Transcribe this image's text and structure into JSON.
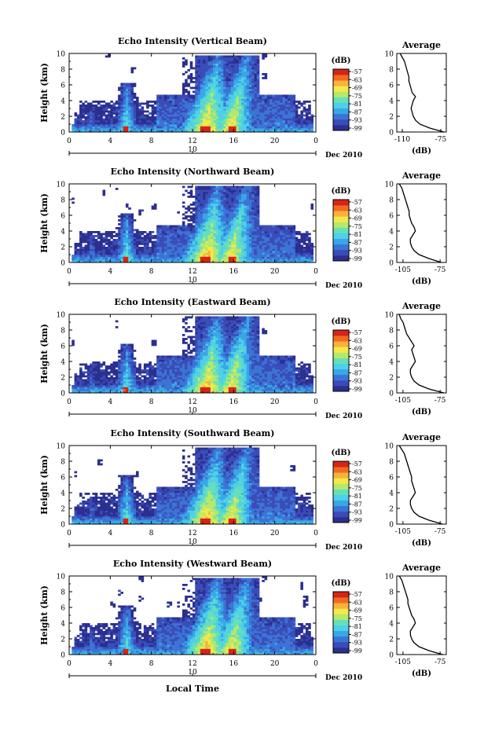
{
  "figure": {
    "xlabel_bottom": "Local Time",
    "date_label": "Dec 2010",
    "date_tick_label": "10",
    "colorbar_unit": "(dB)",
    "colorbar_ticks": [
      "-57",
      "-63",
      "-69",
      "-75",
      "-81",
      "-87",
      "-93",
      "-99"
    ],
    "colormap": [
      "#2b2f8f",
      "#3a4cb8",
      "#3c74d6",
      "#38a7e6",
      "#4fd0e8",
      "#66e0b8",
      "#b8e86a",
      "#f4e84a",
      "#f9b23a",
      "#f26a22",
      "#d62418"
    ],
    "profile_color": "#000000",
    "color_layer_profile": "#000000"
  },
  "chart_data": [
    {
      "type": "heatmap",
      "title": "Echo Intensity (Vertical Beam)",
      "ylabel": "Height (km)",
      "xlabel": "Local Time",
      "x_ticks": [
        "0",
        "4",
        "8",
        "12",
        "16",
        "20",
        "0"
      ],
      "y_ticks": [
        "0",
        "2",
        "4",
        "6",
        "8",
        "10"
      ],
      "xlim": [
        0,
        24
      ],
      "ylim": [
        0,
        10
      ],
      "colorbar": {
        "label": "(dB)",
        "ticks": [
          -57,
          -63,
          -69,
          -75,
          -81,
          -87,
          -93,
          -99
        ]
      },
      "profile": {
        "title": "Average",
        "xlabel": "(dB)",
        "x_ticks": [
          "-110",
          "-75"
        ],
        "xlim": [
          -115,
          -70
        ],
        "y_ticks": [
          "0",
          "2",
          "4",
          "6",
          "8",
          "10"
        ],
        "heights": [
          0,
          0.5,
          1,
          1.5,
          2,
          2.5,
          3,
          3.5,
          4,
          4.5,
          5,
          5.5,
          6,
          6.5,
          7,
          7.5,
          8,
          8.5,
          9,
          9.5,
          10
        ],
        "values": [
          -72,
          -85,
          -94,
          -98,
          -100,
          -101,
          -102,
          -101,
          -100,
          -98,
          -101,
          -102,
          -103,
          -104,
          -104,
          -105,
          -106,
          -107,
          -108,
          -110,
          -112
        ]
      }
    },
    {
      "type": "heatmap",
      "title": "Echo Intensity (Northward Beam)",
      "ylabel": "Height (km)",
      "xlabel": "Local Time",
      "x_ticks": [
        "0",
        "4",
        "8",
        "12",
        "16",
        "20",
        "0"
      ],
      "y_ticks": [
        "0",
        "2",
        "4",
        "6",
        "8",
        "10"
      ],
      "xlim": [
        0,
        24
      ],
      "ylim": [
        0,
        10
      ],
      "colorbar": {
        "label": "(dB)",
        "ticks": [
          -57,
          -63,
          -69,
          -75,
          -81,
          -87,
          -93,
          -99
        ]
      },
      "profile": {
        "title": "Average",
        "xlabel": "(dB)",
        "x_ticks": [
          "-105",
          "-75"
        ],
        "xlim": [
          -110,
          -70
        ],
        "y_ticks": [
          "0",
          "2",
          "4",
          "6",
          "8",
          "10"
        ],
        "heights": [
          0,
          0.5,
          1,
          1.5,
          2,
          2.5,
          3,
          3.5,
          4,
          4.5,
          5,
          5.5,
          6,
          6.5,
          7,
          7.5,
          8,
          8.5,
          9,
          9.5,
          10
        ],
        "values": [
          -74,
          -84,
          -92,
          -96,
          -98,
          -99,
          -99,
          -97,
          -95,
          -96,
          -98,
          -99,
          -100,
          -100,
          -101,
          -102,
          -103,
          -104,
          -105,
          -106,
          -108
        ]
      }
    },
    {
      "type": "heatmap",
      "title": "Echo Intensity (Eastward Beam)",
      "ylabel": "Height (km)",
      "xlabel": "Local Time",
      "x_ticks": [
        "0",
        "4",
        "8",
        "12",
        "16",
        "20",
        "0"
      ],
      "y_ticks": [
        "0",
        "2",
        "4",
        "6",
        "8",
        "10"
      ],
      "xlim": [
        0,
        24
      ],
      "ylim": [
        0,
        10
      ],
      "colorbar": {
        "label": "(dB)",
        "ticks": [
          -57,
          -63,
          -69,
          -75,
          -81,
          -87,
          -93,
          -99
        ]
      },
      "profile": {
        "title": "Average",
        "xlabel": "(dB)",
        "x_ticks": [
          "-105",
          "-75"
        ],
        "xlim": [
          -110,
          -70
        ],
        "y_ticks": [
          "0",
          "2",
          "4",
          "6",
          "8",
          "10"
        ],
        "heights": [
          0,
          0.5,
          1,
          1.5,
          2,
          2.5,
          3,
          3.5,
          4,
          4.5,
          5,
          5.5,
          6,
          6.5,
          7,
          7.5,
          8,
          8.5,
          9,
          9.5,
          10
        ],
        "values": [
          -72,
          -84,
          -92,
          -96,
          -98,
          -99,
          -99,
          -97,
          -95,
          -96,
          -97,
          -98,
          -96,
          -98,
          -100,
          -102,
          -103,
          -104,
          -105,
          -107,
          -108
        ]
      }
    },
    {
      "type": "heatmap",
      "title": "Echo Intensity (Southward Beam)",
      "ylabel": "Height (km)",
      "xlabel": "Local Time",
      "x_ticks": [
        "0",
        "4",
        "8",
        "12",
        "16",
        "20",
        "0"
      ],
      "y_ticks": [
        "0",
        "2",
        "4",
        "6",
        "8",
        "10"
      ],
      "xlim": [
        0,
        24
      ],
      "ylim": [
        0,
        10
      ],
      "colorbar": {
        "label": "(dB)",
        "ticks": [
          -57,
          -63,
          -69,
          -75,
          -81,
          -87,
          -93,
          -99
        ]
      },
      "profile": {
        "title": "Average",
        "xlabel": "(dB)",
        "x_ticks": [
          "-105",
          "-75"
        ],
        "xlim": [
          -110,
          -70
        ],
        "y_ticks": [
          "0",
          "2",
          "4",
          "6",
          "8",
          "10"
        ],
        "heights": [
          0,
          0.5,
          1,
          1.5,
          2,
          2.5,
          3,
          3.5,
          4,
          4.5,
          5,
          5.5,
          6,
          6.5,
          7,
          7.5,
          8,
          8.5,
          9,
          9.5,
          10
        ],
        "values": [
          -73,
          -84,
          -92,
          -96,
          -98,
          -99,
          -99,
          -97,
          -95,
          -96,
          -97,
          -98,
          -98,
          -99,
          -100,
          -101,
          -102,
          -103,
          -104,
          -106,
          -108
        ]
      }
    },
    {
      "type": "heatmap",
      "title": "Echo Intensity (Westward Beam)",
      "ylabel": "Height (km)",
      "xlabel": "Local Time",
      "x_ticks": [
        "0",
        "4",
        "8",
        "12",
        "16",
        "20",
        "0"
      ],
      "y_ticks": [
        "0",
        "2",
        "4",
        "6",
        "8",
        "10"
      ],
      "xlim": [
        0,
        24
      ],
      "ylim": [
        0,
        10
      ],
      "colorbar": {
        "label": "(dB)",
        "ticks": [
          -57,
          -63,
          -69,
          -75,
          -81,
          -87,
          -93,
          -99
        ]
      },
      "profile": {
        "title": "Average",
        "xlabel": "(dB)",
        "x_ticks": [
          "-105",
          "-75"
        ],
        "xlim": [
          -110,
          -70
        ],
        "y_ticks": [
          "0",
          "2",
          "4",
          "6",
          "8",
          "10"
        ],
        "heights": [
          0,
          0.5,
          1,
          1.5,
          2,
          2.5,
          3,
          3.5,
          4,
          4.5,
          5,
          5.5,
          6,
          6.5,
          7,
          7.5,
          8,
          8.5,
          9,
          9.5,
          10
        ],
        "values": [
          -73,
          -84,
          -92,
          -96,
          -98,
          -99,
          -99,
          -97,
          -95,
          -96,
          -98,
          -99,
          -100,
          -101,
          -101,
          -102,
          -103,
          -104,
          -105,
          -106,
          -108
        ]
      }
    }
  ]
}
